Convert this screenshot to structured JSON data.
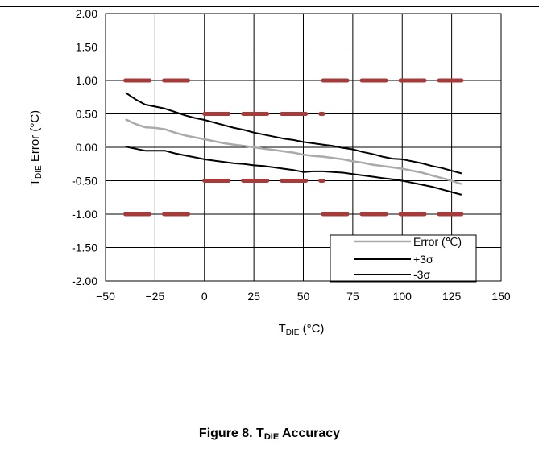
{
  "caption": {
    "prefix": "Figure 8. T",
    "subscript": "DIE",
    "suffix": " Accuracy"
  },
  "chart_data": {
    "type": "line",
    "ylabel": {
      "main": "T",
      "sub": "DIE",
      "rest": " Error (°C)"
    },
    "xlabel": {
      "main": "T",
      "sub": "DIE",
      "rest": " (°C)"
    },
    "xlim": [
      -50,
      150
    ],
    "ylim": [
      -2.0,
      2.0
    ],
    "x_ticks": [
      -50,
      -25,
      0,
      25,
      50,
      75,
      100,
      125,
      150
    ],
    "x_tick_labels": [
      "−50",
      "−25",
      "0",
      "25",
      "50",
      "75",
      "100",
      "125",
      "150"
    ],
    "y_ticks": [
      2.0,
      1.5,
      1.0,
      0.5,
      0.0,
      -0.5,
      -1.0,
      -1.5,
      -2.0
    ],
    "y_tick_labels": [
      "2.00",
      "1.50",
      "1.00",
      "0.50",
      "0.00",
      "-0.50",
      "-1.00",
      "-1.50",
      "-2.00"
    ],
    "grid": true,
    "legend_position": "bottom-right",
    "series": [
      {
        "name": "Error (℃)",
        "color": "#aaaaaa",
        "x": [
          -40,
          -35,
          -30,
          -25,
          -20,
          -15,
          -10,
          -5,
          0,
          5,
          10,
          15,
          20,
          25,
          30,
          35,
          40,
          45,
          50,
          55,
          60,
          65,
          70,
          75,
          80,
          85,
          90,
          95,
          100,
          105,
          110,
          115,
          120,
          125,
          130
        ],
        "values": [
          0.42,
          0.35,
          0.3,
          0.29,
          0.27,
          0.22,
          0.18,
          0.15,
          0.12,
          0.09,
          0.06,
          0.04,
          0.02,
          0.0,
          -0.02,
          -0.04,
          -0.06,
          -0.08,
          -0.11,
          -0.13,
          -0.14,
          -0.16,
          -0.18,
          -0.21,
          -0.23,
          -0.26,
          -0.28,
          -0.3,
          -0.32,
          -0.35,
          -0.38,
          -0.42,
          -0.46,
          -0.5,
          -0.55
        ]
      },
      {
        "name": "+3σ",
        "color": "#000000",
        "x": [
          -40,
          -35,
          -30,
          -25,
          -20,
          -15,
          -10,
          -5,
          0,
          5,
          10,
          15,
          20,
          25,
          30,
          35,
          40,
          45,
          50,
          55,
          60,
          65,
          70,
          75,
          80,
          85,
          90,
          95,
          100,
          105,
          110,
          115,
          120,
          125,
          130
        ],
        "values": [
          0.82,
          0.72,
          0.64,
          0.61,
          0.58,
          0.53,
          0.48,
          0.44,
          0.41,
          0.37,
          0.33,
          0.29,
          0.26,
          0.22,
          0.19,
          0.16,
          0.13,
          0.11,
          0.08,
          0.06,
          0.04,
          0.02,
          -0.01,
          -0.03,
          -0.07,
          -0.1,
          -0.14,
          -0.17,
          -0.18,
          -0.21,
          -0.24,
          -0.28,
          -0.31,
          -0.35,
          -0.39
        ]
      },
      {
        "name": "-3σ",
        "color": "#000000",
        "x": [
          -40,
          -35,
          -30,
          -25,
          -20,
          -15,
          -10,
          -5,
          0,
          5,
          10,
          15,
          20,
          25,
          30,
          35,
          40,
          45,
          50,
          55,
          60,
          65,
          70,
          75,
          80,
          85,
          90,
          95,
          100,
          105,
          110,
          115,
          120,
          125,
          130
        ],
        "values": [
          0.01,
          -0.02,
          -0.05,
          -0.05,
          -0.05,
          -0.09,
          -0.12,
          -0.15,
          -0.18,
          -0.2,
          -0.22,
          -0.24,
          -0.25,
          -0.27,
          -0.28,
          -0.3,
          -0.32,
          -0.34,
          -0.37,
          -0.36,
          -0.36,
          -0.37,
          -0.38,
          -0.4,
          -0.42,
          -0.44,
          -0.46,
          -0.48,
          -0.5,
          -0.53,
          -0.56,
          -0.59,
          -0.63,
          -0.67,
          -0.71
        ]
      }
    ],
    "limit_lines": {
      "color": "#a93a3a",
      "lines": [
        {
          "y": 1.0,
          "x_start": -40,
          "x_end": -2
        },
        {
          "y": 1.0,
          "x_start": 60,
          "x_end": 130
        },
        {
          "y": 0.5,
          "x_start": 0,
          "x_end": 60
        },
        {
          "y": -0.5,
          "x_start": 0,
          "x_end": 60
        },
        {
          "y": -1.0,
          "x_start": -40,
          "x_end": -2
        },
        {
          "y": -1.0,
          "x_start": 60,
          "x_end": 130
        }
      ]
    }
  }
}
